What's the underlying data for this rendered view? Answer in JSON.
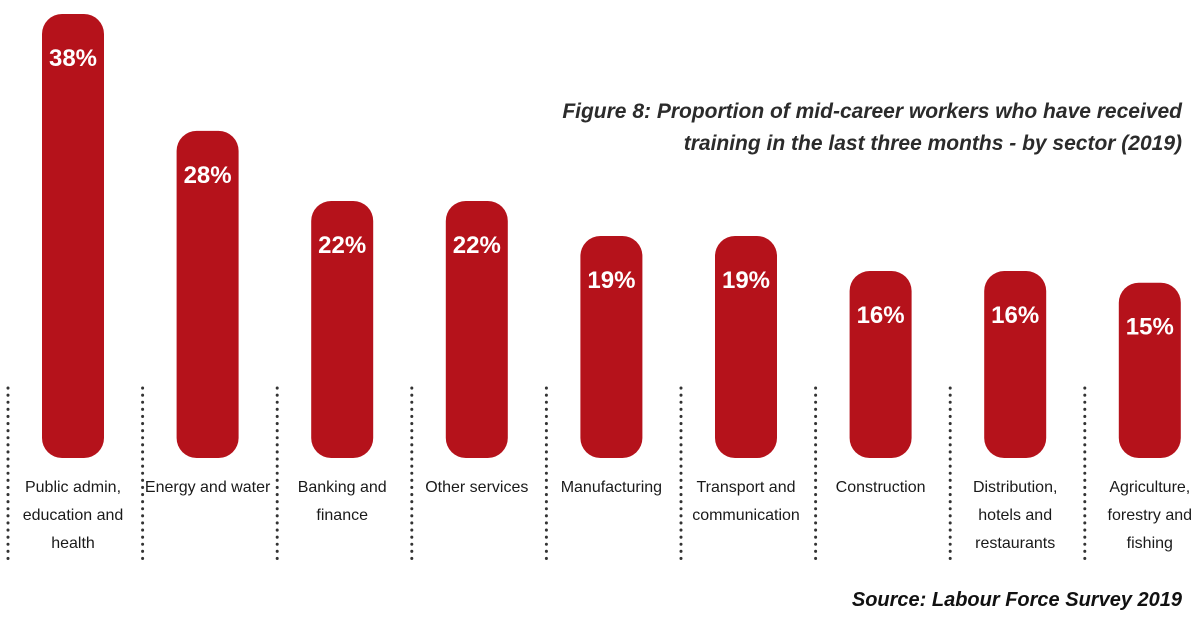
{
  "colors": {
    "bar": "#b5121b",
    "label": "#ffffff",
    "divider": "#333333"
  },
  "chart_data": {
    "type": "bar",
    "title": "Figure 8: Proportion of mid-career workers who have received training in the last three months - by sector (2019)",
    "source": "Source: Labour Force Survey 2019",
    "xlabel": "",
    "ylabel": "",
    "ylim": [
      0,
      40
    ],
    "unit": "%",
    "categories": [
      "Public admin, education and health",
      "Energy and water",
      "Banking and finance",
      "Other services",
      "Manufacturing",
      "Transport and communication",
      "Construction",
      "Distribution, hotels and restaurants",
      "Agriculture, forestry and fishing"
    ],
    "values": [
      38,
      28,
      22,
      22,
      19,
      19,
      16,
      16,
      15
    ],
    "data_labels": [
      "38%",
      "28%",
      "22%",
      "22%",
      "19%",
      "19%",
      "16%",
      "16%",
      "15%"
    ]
  }
}
